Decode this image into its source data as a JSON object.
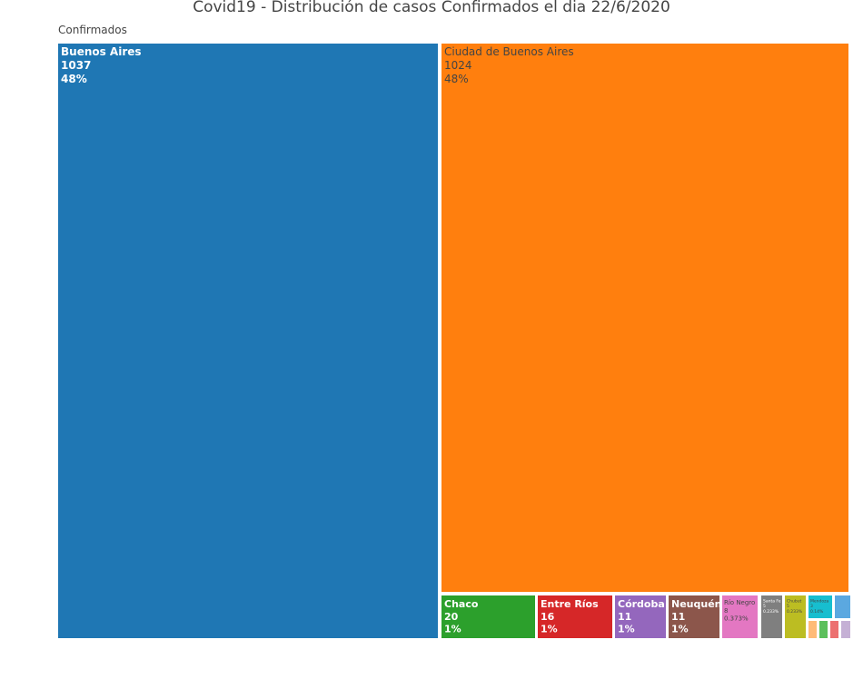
{
  "chart_data": {
    "type": "treemap",
    "title": "Covid19 - Distribución de casos Confirmados el dia 22/6/2020",
    "root_label": "Confirmados",
    "items": [
      {
        "label": "Buenos Aires",
        "value": 1037,
        "percent": "48%",
        "color": "#1f77b4",
        "text_color": "#ffffff"
      },
      {
        "label": "Ciudad de Buenos Aires",
        "value": 1024,
        "percent": "48%",
        "color": "#ff7f0e",
        "text_color": "#444444"
      },
      {
        "label": "Chaco",
        "value": 20,
        "percent": "1%",
        "color": "#2ca02c",
        "text_color": "#ffffff"
      },
      {
        "label": "Entre Ríos",
        "value": 16,
        "percent": "1%",
        "color": "#d62728",
        "text_color": "#ffffff"
      },
      {
        "label": "Córdoba",
        "value": 11,
        "percent": "1%",
        "color": "#9467bd",
        "text_color": "#ffffff"
      },
      {
        "label": "Neuquén",
        "value": 11,
        "percent": "1%",
        "color": "#8c564b",
        "text_color": "#ffffff"
      },
      {
        "label": "Río Negro",
        "value": 8,
        "percent": "0.373%",
        "color": "#e377c2",
        "text_color": "#444444"
      },
      {
        "label": "Santa Fe",
        "value": 5,
        "percent": "0.233%",
        "color": "#7f7f7f",
        "text_color": "#ffffff"
      },
      {
        "label": "Chubut",
        "value": 5,
        "percent": "0.233%",
        "color": "#bcbd22",
        "text_color": "#444444"
      },
      {
        "label": "Mendoza",
        "value": 3,
        "percent": "0.14%",
        "color": "#17becf",
        "text_color": "#444444"
      },
      {
        "label": "",
        "value": 2,
        "percent": "",
        "color": "#5ba8e0",
        "text_color": "#ffffff"
      },
      {
        "label": "",
        "value": 1,
        "percent": "",
        "color": "#ffbb78",
        "text_color": "#444444"
      },
      {
        "label": "",
        "value": 1,
        "percent": "",
        "color": "#5cc05c",
        "text_color": "#ffffff"
      },
      {
        "label": "",
        "value": 1,
        "percent": "",
        "color": "#ec7070",
        "text_color": "#ffffff"
      },
      {
        "label": "",
        "value": 1,
        "percent": "",
        "color": "#c5b0d5",
        "text_color": "#444444"
      }
    ]
  }
}
